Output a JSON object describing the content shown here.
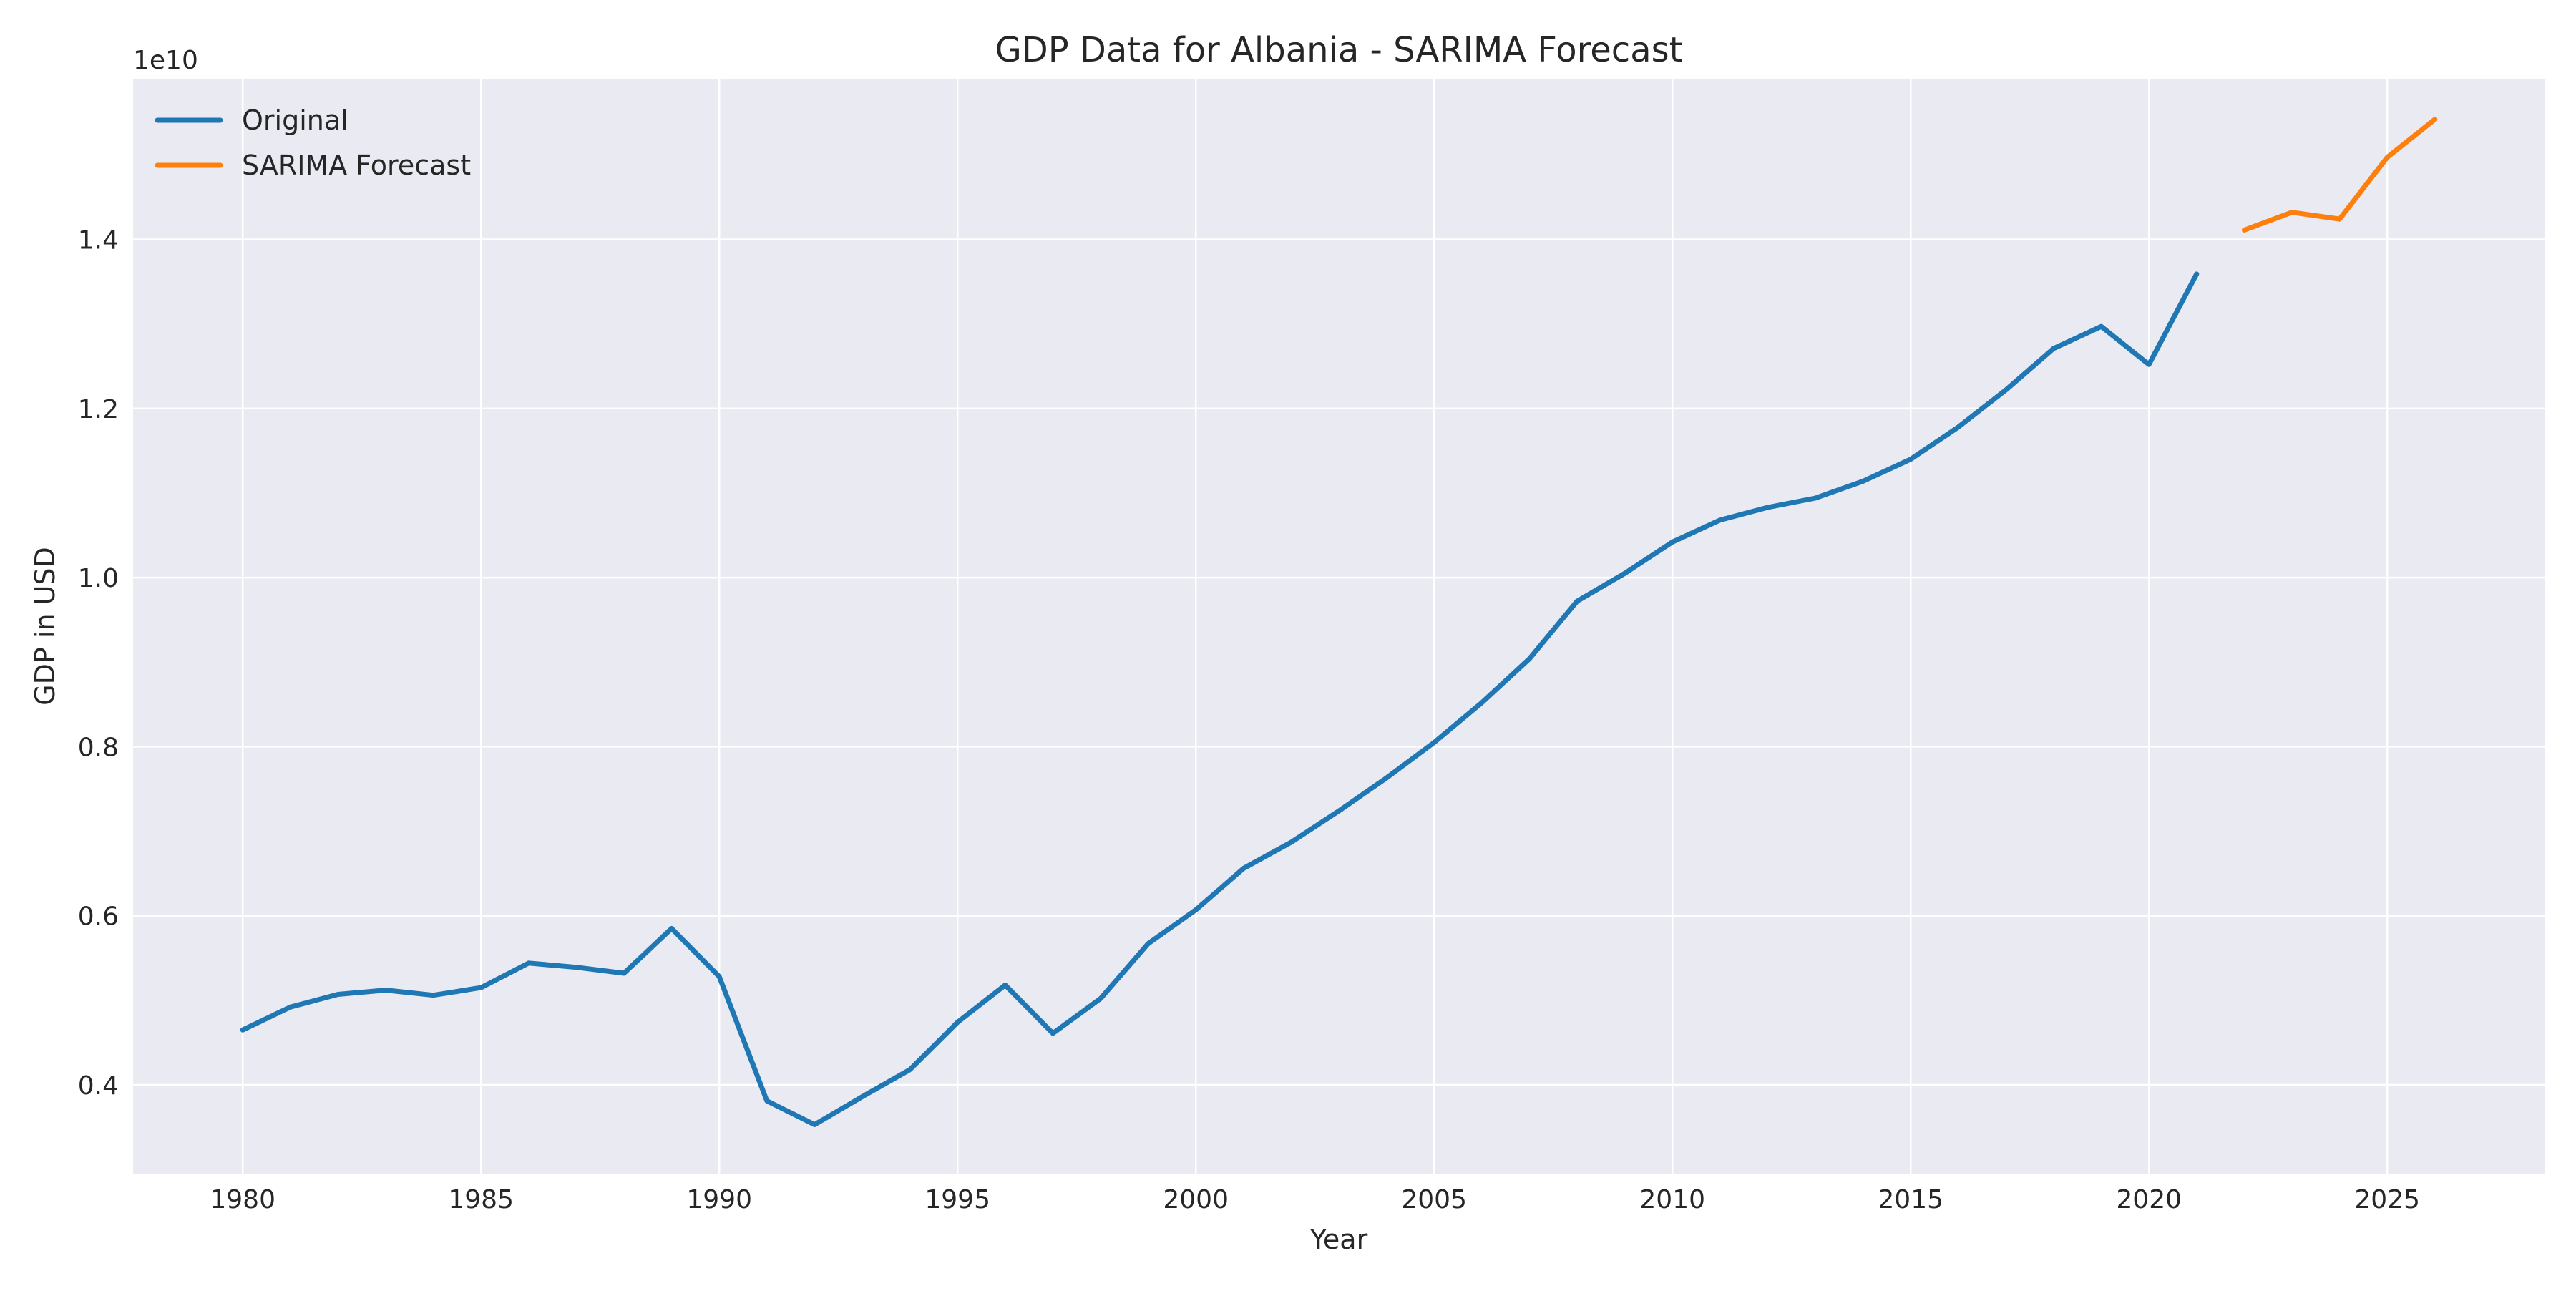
{
  "chart_data": {
    "type": "line",
    "title": "GDP Data for Albania - SARIMA Forecast",
    "xlabel": "Year",
    "ylabel": "GDP in USD",
    "y_offset_label": "1e10",
    "xlim": [
      1977.7,
      2028.3
    ],
    "ylim": [
      0.295,
      1.59
    ],
    "x_ticks": [
      1980,
      1985,
      1990,
      1995,
      2000,
      2005,
      2010,
      2015,
      2020,
      2025
    ],
    "y_ticks": [
      0.4,
      0.6,
      0.8,
      1.0,
      1.2,
      1.4
    ],
    "y_tick_labels": [
      "0.4",
      "0.6",
      "0.8",
      "1.0",
      "1.2",
      "1.4"
    ],
    "grid": true,
    "legend_position": "top-left",
    "series": [
      {
        "name": "Original",
        "color": "#1f77b4",
        "x": [
          1980,
          1981,
          1982,
          1983,
          1984,
          1985,
          1986,
          1987,
          1988,
          1989,
          1990,
          1991,
          1992,
          1993,
          1994,
          1995,
          1996,
          1997,
          1998,
          1999,
          2000,
          2001,
          2002,
          2003,
          2004,
          2005,
          2006,
          2007,
          2008,
          2009,
          2010,
          2011,
          2012,
          2013,
          2014,
          2015,
          2016,
          2017,
          2018,
          2019,
          2020,
          2021
        ],
        "y": [
          0.465,
          0.492,
          0.507,
          0.512,
          0.506,
          0.515,
          0.544,
          0.539,
          0.532,
          0.585,
          0.528,
          0.381,
          0.353,
          0.386,
          0.418,
          0.474,
          0.518,
          0.461,
          0.502,
          0.567,
          0.607,
          0.656,
          0.687,
          0.724,
          0.763,
          0.805,
          0.852,
          0.904,
          0.972,
          1.005,
          1.042,
          1.068,
          1.083,
          1.094,
          1.114,
          1.14,
          1.178,
          1.222,
          1.271,
          1.297,
          1.252,
          1.359
        ]
      },
      {
        "name": "SARIMA Forecast",
        "color": "#ff7f0e",
        "x": [
          2022,
          2023,
          2024,
          2025,
          2026
        ],
        "y": [
          1.411,
          1.432,
          1.424,
          1.497,
          1.542
        ]
      }
    ]
  }
}
